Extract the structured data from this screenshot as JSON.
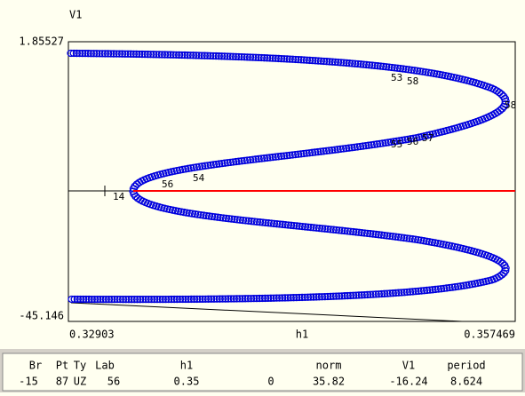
{
  "plot": {
    "y_label": "V1",
    "y_max": "1.85527",
    "y_min": "-45.146",
    "x_min": "0.32903",
    "x_label": "h1",
    "x_max": "0.357469",
    "point_labels": [
      "14",
      "56",
      "54",
      "53",
      "55",
      "56",
      "57",
      "58",
      "58"
    ]
  },
  "status": {
    "headers": [
      "Br",
      "Pt",
      "Ty",
      "Lab",
      "h1",
      "",
      "norm",
      "V1",
      "period"
    ],
    "values": [
      "-15",
      "87",
      "UZ",
      "56",
      "0.35",
      "0",
      "35.82",
      "-16.24",
      "8.624"
    ]
  }
}
